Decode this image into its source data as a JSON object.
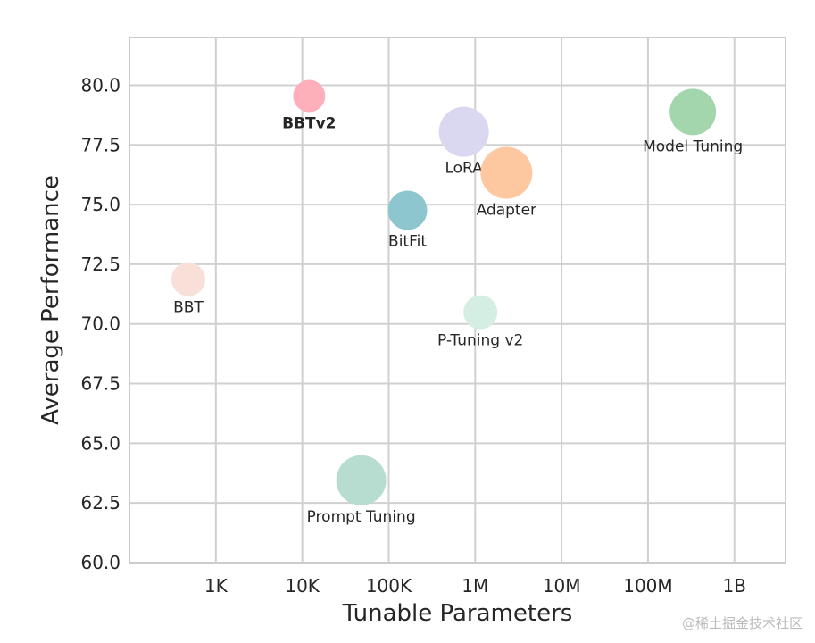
{
  "chart_data": {
    "type": "scatter",
    "title": "",
    "xlabel": "Tunable Parameters",
    "ylabel": "Average Performance",
    "xscale": "log",
    "xlim": [
      100,
      3900000000
    ],
    "ylim": [
      60,
      82
    ],
    "grid": true,
    "x_ticks": [
      {
        "value": 1000,
        "label": "1K"
      },
      {
        "value": 10000,
        "label": "10K"
      },
      {
        "value": 100000,
        "label": "100K"
      },
      {
        "value": 1000000,
        "label": "1M"
      },
      {
        "value": 10000000,
        "label": "10M"
      },
      {
        "value": 100000000,
        "label": "100M"
      },
      {
        "value": 1000000000,
        "label": "1B"
      }
    ],
    "y_ticks": [
      "60.0",
      "62.5",
      "65.0",
      "67.5",
      "70.0",
      "72.5",
      "75.0",
      "77.5",
      "80.0"
    ],
    "points": [
      {
        "label": "BBTv2",
        "x": 12000,
        "y": 79.55,
        "color": "#fdb0ba",
        "label_color": "#e06870",
        "bold": true
      },
      {
        "label": "LoRA",
        "x": 740000,
        "y": 78.05,
        "color": "#d9d8f0",
        "label_color": "#262626",
        "bold": false
      },
      {
        "label": "Adapter",
        "x": 2300000,
        "y": 76.33,
        "color": "#fdc8a0",
        "label_color": "#262626",
        "bold": false
      },
      {
        "label": "Model Tuning",
        "x": 330000000,
        "y": 78.88,
        "color": "#a4d6ae",
        "label_color": "#262626",
        "bold": false
      },
      {
        "label": "BitFit",
        "x": 165000,
        "y": 74.76,
        "color": "#8ec6cf",
        "label_color": "#262626",
        "bold": false
      },
      {
        "label": "BBT",
        "x": 480,
        "y": 71.87,
        "color": "#f8e0d8",
        "label_color": "#262626",
        "bold": false
      },
      {
        "label": "P-Tuning v2",
        "x": 1150000,
        "y": 70.49,
        "color": "#d5eee4",
        "label_color": "#262626",
        "bold": false
      },
      {
        "label": "Prompt Tuning",
        "x": 48000,
        "y": 63.45,
        "color": "#b7ddd0",
        "label_color": "#262626",
        "bold": false
      }
    ]
  },
  "watermark": "@稀土掘金技术社区"
}
